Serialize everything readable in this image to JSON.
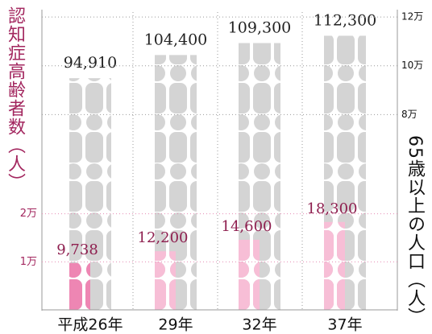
{
  "chart_data": {
    "type": "pictogram",
    "categories": [
      "平成26年",
      "29年",
      "32年",
      "37年"
    ],
    "y_label": "認知症高齢者数（人）",
    "y2_label": "65歳以上の人口（人）",
    "ylim": [
      0,
      62000
    ],
    "yticks": [
      {
        "value": 10000,
        "label": "1万"
      },
      {
        "value": 20000,
        "label": "2万"
      }
    ],
    "y2lim": [
      0,
      122000
    ],
    "y2ticks": [
      {
        "value": 80000,
        "label": "8万"
      },
      {
        "value": 100000,
        "label": "10万"
      },
      {
        "value": 120000,
        "label": "12万"
      }
    ],
    "grid": true,
    "series": [
      {
        "axis": "y2",
        "color": "#d4d4d4",
        "values": [
          94910,
          104400,
          109300,
          112300
        ],
        "value_labels": [
          "94,910",
          "104,400",
          "109,300",
          "112,300"
        ]
      },
      {
        "axis": "y",
        "color": "#f7bed6",
        "colors": [
          "#ee86b3",
          "#f7bed6",
          "#f7bed6",
          "#f7bed6"
        ],
        "values": [
          9738,
          12200,
          14600,
          18300
        ],
        "value_labels": [
          "9,738",
          "12,200",
          "14,600",
          "18,300"
        ]
      }
    ]
  }
}
